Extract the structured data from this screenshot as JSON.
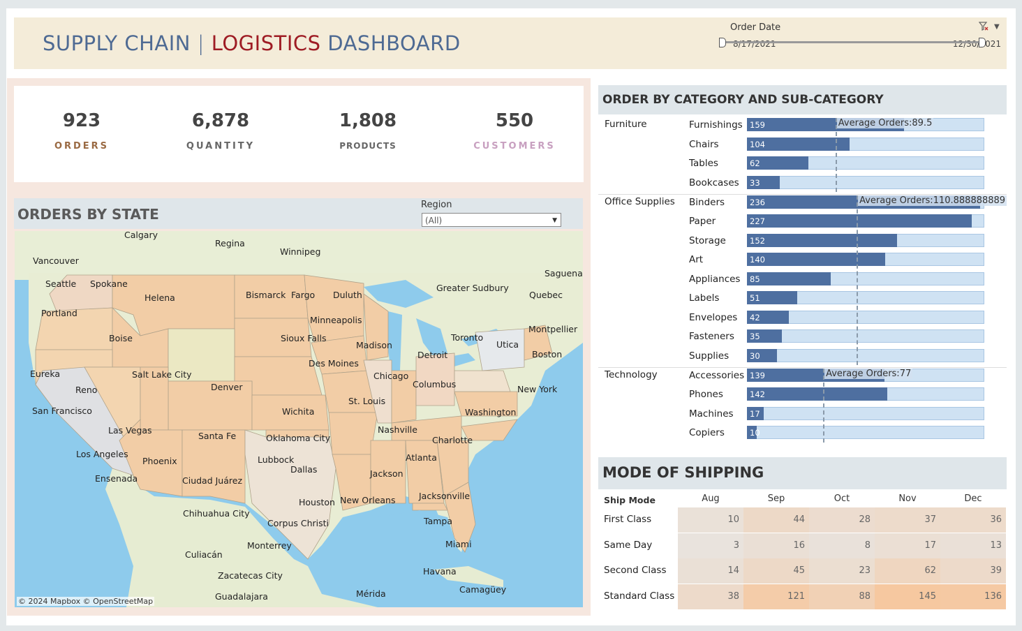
{
  "header": {
    "title_part1": "SUPPLY CHAIN",
    "title_sep": "|",
    "title_part2": "LOGISTICS",
    "title_part3": "DASHBOARD",
    "order_date_label": "Order Date",
    "date_start": "8/17/2021",
    "date_end": "12/30/2021"
  },
  "kpis": [
    {
      "value": "923",
      "label": "ORDERS",
      "color": "#9a6a43"
    },
    {
      "value": "6,878",
      "label": "QUANTITY",
      "color": "#666666"
    },
    {
      "value": "1,808",
      "label": "PRODUCTS",
      "color": "#666666"
    },
    {
      "value": "550",
      "label": "CUSTOMERS",
      "color": "#c8a0c0"
    }
  ],
  "map": {
    "title": "ORDERS BY STATE",
    "region_label": "Region",
    "region_value": "(All)",
    "attribution": "© 2024 Mapbox  © OpenStreetMap",
    "cities": [
      "Calgary",
      "Regina",
      "Winnipeg",
      "Vancouver",
      "Saguenay",
      "Seattle",
      "Spokane",
      "Helena",
      "Bismarck",
      "Fargo",
      "Duluth",
      "Greater Sudbury",
      "Quebec",
      "Portland",
      "Minneapolis",
      "Montpellier",
      "Boise",
      "Sioux Falls",
      "Madison",
      "Toronto",
      "Utica",
      "Detroit",
      "Boston",
      "Eureka",
      "Salt Lake City",
      "Des Moines",
      "Chicago",
      "Reno",
      "Denver",
      "Columbus",
      "New York",
      "San Francisco",
      "St. Louis",
      "Wichita",
      "Washington",
      "Las Vegas",
      "Nashville",
      "Santa Fe",
      "Oklahoma City",
      "Charlotte",
      "Los Angeles",
      "Lubbock",
      "Atlanta",
      "Phoenix",
      "Dallas",
      "Ensenada",
      "Ciudad Juárez",
      "Jackson",
      "Houston",
      "New Orleans",
      "Jacksonville",
      "Chihuahua City",
      "Corpus Christi",
      "Tampa",
      "Monterrey",
      "Miami",
      "Culiacán",
      "Zacatecas City",
      "Havana",
      "Mérida",
      "Camagüey",
      "Guadalajara"
    ]
  },
  "category_chart": {
    "title": "ORDER BY CATEGORY AND SUB-CATEGORY"
  },
  "chart_data": [
    {
      "type": "bar",
      "title": "ORDER BY CATEGORY AND SUB-CATEGORY",
      "orientation": "horizontal",
      "xlim": [
        0,
        240
      ],
      "groups": [
        {
          "category": "Furniture",
          "average_label": "Average Orders:89.5",
          "average": 89.5,
          "subcategories": [
            "Furnishings",
            "Chairs",
            "Tables",
            "Bookcases"
          ],
          "values": [
            159,
            104,
            62,
            33
          ]
        },
        {
          "category": "Office Supplies",
          "average_label": "Average Orders:110.888888889",
          "average": 110.888888889,
          "subcategories": [
            "Binders",
            "Paper",
            "Storage",
            "Art",
            "Appliances",
            "Labels",
            "Envelopes",
            "Fasteners",
            "Supplies"
          ],
          "values": [
            236,
            227,
            152,
            140,
            85,
            51,
            42,
            35,
            30
          ]
        },
        {
          "category": "Technology",
          "average_label": "Average Orders:77",
          "average": 77,
          "subcategories": [
            "Accessories",
            "Phones",
            "Machines",
            "Copiers"
          ],
          "values": [
            139,
            142,
            17,
            10
          ]
        }
      ]
    },
    {
      "type": "heatmap",
      "title": "MODE OF SHIPPING",
      "row_header": "Ship Mode",
      "columns": [
        "Aug",
        "Sep",
        "Oct",
        "Nov",
        "Dec"
      ],
      "rows": [
        "First Class",
        "Same Day",
        "Second Class",
        "Standard Class"
      ],
      "values": [
        [
          10,
          44,
          28,
          37,
          36
        ],
        [
          3,
          16,
          8,
          17,
          13
        ],
        [
          14,
          45,
          23,
          62,
          39
        ],
        [
          38,
          121,
          88,
          145,
          136
        ]
      ]
    }
  ]
}
